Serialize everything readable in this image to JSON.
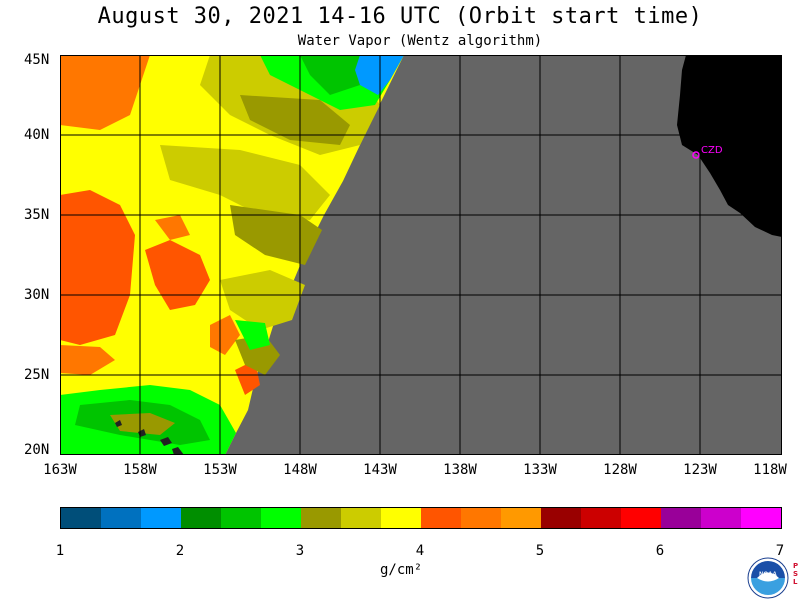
{
  "header": {
    "title": "August 30, 2021  14-16 UTC  (Orbit start time)",
    "subtitle": "Water Vapor (Wentz algorithm)"
  },
  "map": {
    "latitude_labels": [
      "45N",
      "40N",
      "35N",
      "30N",
      "25N",
      "20N"
    ],
    "longitude_labels": [
      "163W",
      "158W",
      "153W",
      "148W",
      "143W",
      "138W",
      "133W",
      "128W",
      "123W",
      "118W"
    ],
    "station_label": "CZD",
    "colors": {
      "no_data": "#656565",
      "land": "#000000",
      "grid": "#000000",
      "station": "#ff00ff"
    }
  },
  "colorbar": {
    "colors": [
      "#004e79",
      "#0071bf",
      "#0099ff",
      "#008e00",
      "#00c400",
      "#00ff00",
      "#999900",
      "#cccc00",
      "#ffff00",
      "#ff5500",
      "#ff7700",
      "#ff9900",
      "#990000",
      "#cc0000",
      "#ff0000",
      "#990099",
      "#cc00cc",
      "#ff00ff"
    ],
    "tick_labels": [
      "1",
      "2",
      "3",
      "4",
      "5",
      "6",
      "7"
    ],
    "unit": "g/cm²"
  },
  "logo": {
    "psl_text": "PSL"
  }
}
